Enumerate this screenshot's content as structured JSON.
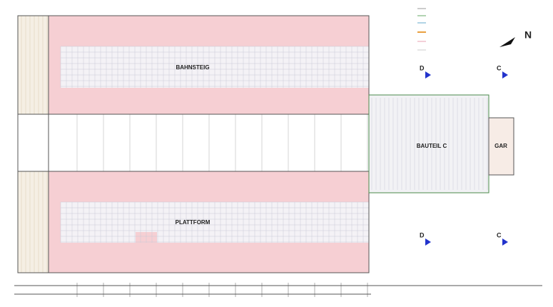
{
  "plan": {
    "halls": [
      {
        "label": "BAHNSTEIG"
      },
      {
        "label": "PLATTFORM"
      }
    ],
    "annex": {
      "label": "BAUTEIL C",
      "small_label": "GAR"
    },
    "sections": [
      "D",
      "C",
      "D",
      "C"
    ],
    "north": "N"
  }
}
